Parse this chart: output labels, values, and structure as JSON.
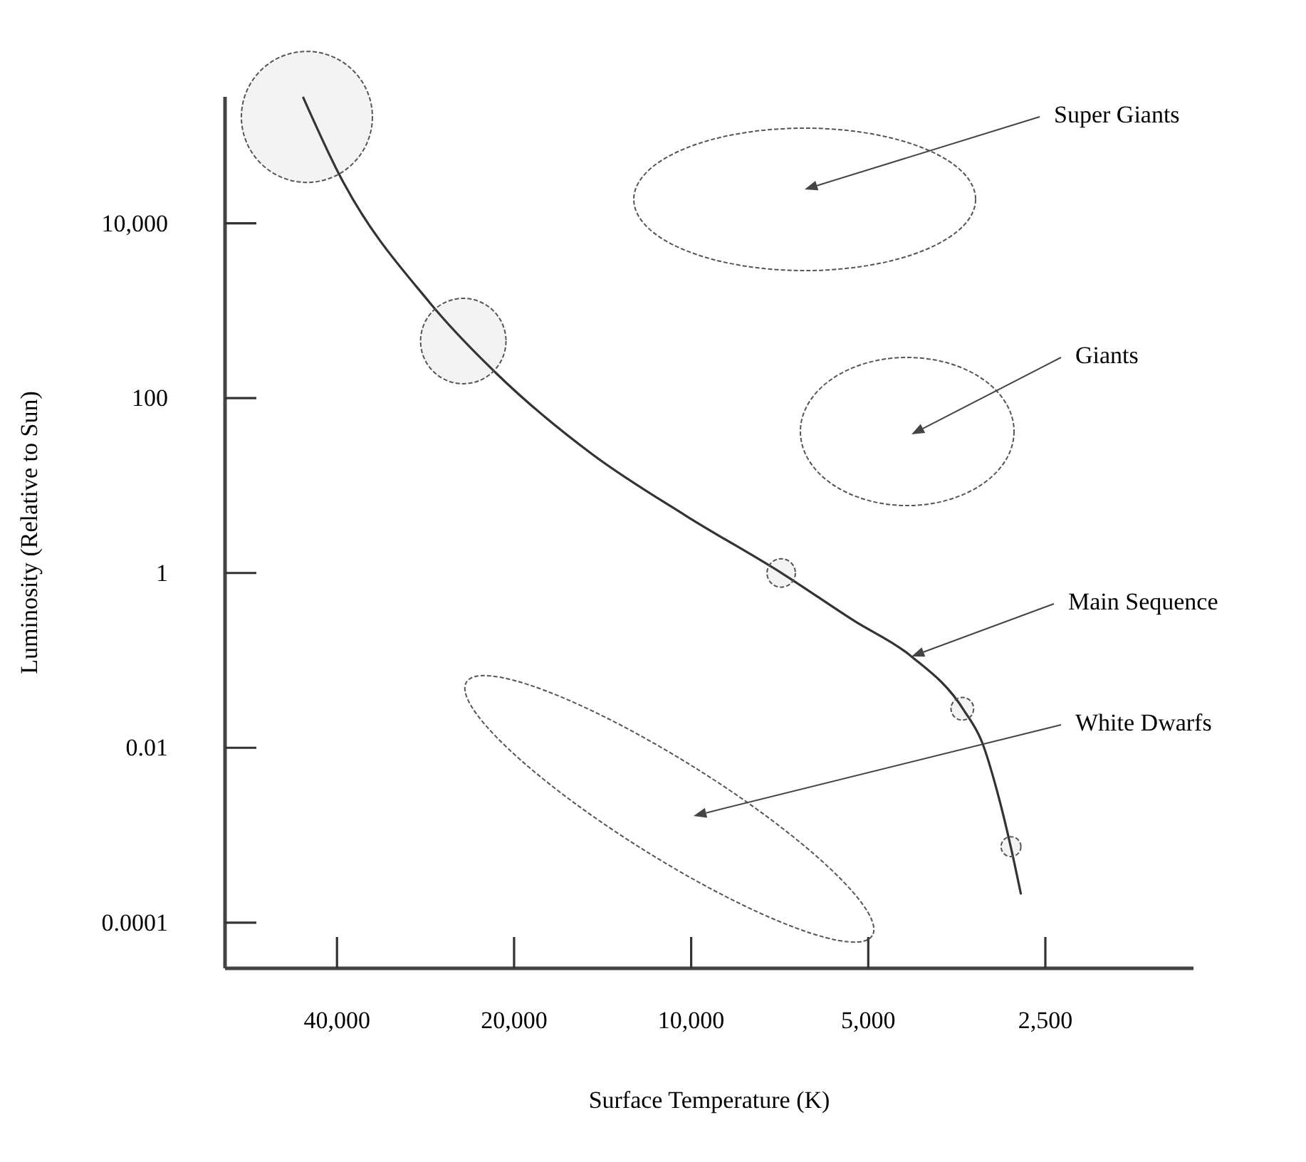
{
  "chart_data": {
    "type": "bubble",
    "xlabel": "Surface Temperature (K)",
    "ylabel": "Luminosity (Relative to Sun)",
    "log": "xy",
    "grid": false,
    "xlim": [
      62000,
      1400
    ],
    "ylim": [
      3e-05,
      280000
    ],
    "xticks": [
      {
        "value": 40000,
        "label": "40,000"
      },
      {
        "value": 20000,
        "label": "20,000"
      },
      {
        "value": 10000,
        "label": "10,000"
      },
      {
        "value": 5000,
        "label": "5,000"
      },
      {
        "value": 2500,
        "label": "2,500"
      }
    ],
    "yticks": [
      {
        "value": 0.0001,
        "label": "0.0001"
      },
      0.01,
      1,
      100,
      {
        "value": 10000,
        "label": "10,000"
      }
    ],
    "series": [
      {
        "type": "line",
        "color": "#333333",
        "marker": "none",
        "line_style": "solid",
        "x": [
          45700,
          39600,
          27800,
          21400,
          14700,
          10200,
          6990,
          5290,
          4230,
          3440,
          3200,
          3020,
          2860,
          2750
        ],
        "values": [
          280000,
          35600,
          1230,
          190,
          22.6,
          4.5,
          0.98,
          0.285,
          0.112,
          0.027,
          0.0114,
          0.0032,
          0.00072,
          0.00021
        ]
      },
      {
        "color": "#555555",
        "marker": "circle",
        "x": [
          45000,
          24400,
          7030,
          3460,
          2860
        ],
        "values": [
          165000,
          450,
          1,
          0.028,
          0.00074
        ],
        "sizes": [
          1,
          0.425,
          0.047,
          0.03,
          0.023
        ]
      }
    ],
    "annotations": [
      "Super Giants",
      "Giants",
      "Main Sequence",
      "White Dwarfs"
    ]
  }
}
